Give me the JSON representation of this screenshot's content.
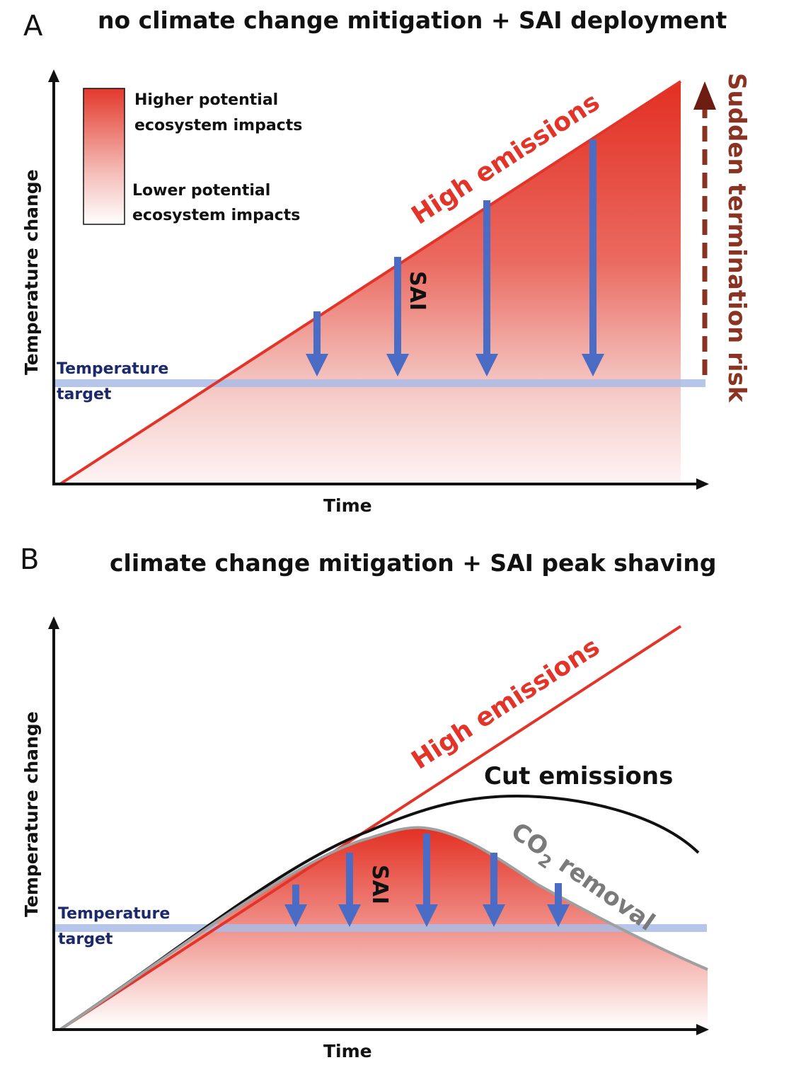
{
  "panel_a": {
    "letter": "A",
    "title": "no climate change mitigation + SAI deployment",
    "y_label": "Temperature change",
    "x_label": "Time",
    "legend": {
      "high_line1": "Higher potential",
      "high_line2": "ecosystem impacts",
      "low_line1": "Lower potential",
      "low_line2": "ecosystem impacts"
    },
    "target_line1": "Temperature",
    "target_line2": "target",
    "high_emissions": "High emissions",
    "sai": "SAI",
    "termination": "Sudden termination risk"
  },
  "panel_b": {
    "letter": "B",
    "title": "climate change mitigation + SAI peak shaving",
    "y_label": "Temperature change",
    "x_label": "Time",
    "target_line1": "Temperature",
    "target_line2": "target",
    "high_emissions": "High emissions",
    "cut_emissions": "Cut emissions",
    "co2_removal_prefix": "CO",
    "co2_removal_sub": "2",
    "co2_removal_suffix": " removal",
    "sai": "SAI"
  },
  "colors": {
    "red": "#e3342a",
    "arrow_blue": "#4a6cc4",
    "target_band": "#a9bce6",
    "termination": "#8a3322",
    "co2_gray": "#a0a0a0"
  }
}
